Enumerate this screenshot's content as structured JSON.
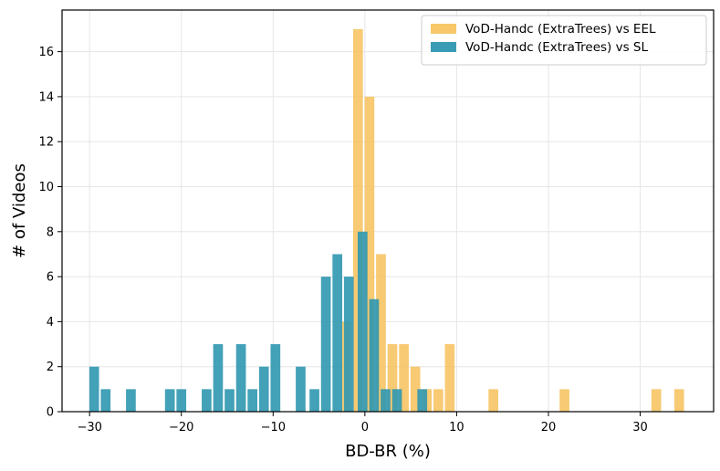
{
  "chart_data": {
    "type": "bar",
    "title": "",
    "xlabel": "BD-BR (%)",
    "ylabel": "# of Videos",
    "xlim": [
      -33,
      38
    ],
    "ylim": [
      0,
      17.85
    ],
    "xticks": [
      -30,
      -20,
      -10,
      0,
      10,
      20,
      30
    ],
    "yticks": [
      0,
      2,
      4,
      6,
      8,
      10,
      12,
      14,
      16
    ],
    "xtick_labels": [
      "−30",
      "−20",
      "−10",
      "0",
      "10",
      "20",
      "30"
    ],
    "ytick_labels": [
      "0",
      "2",
      "4",
      "6",
      "8",
      "10",
      "12",
      "14",
      "16"
    ],
    "bin_width": 1.25,
    "grid": true,
    "legend_position": "top-right",
    "series": [
      {
        "name": "VoD-Handc (ExtraTrees) vs EEL",
        "color": "#f6c15a",
        "bins": [
          {
            "x": -2.0,
            "count": 4
          },
          {
            "x": -0.75,
            "count": 17
          },
          {
            "x": 0.5,
            "count": 14
          },
          {
            "x": 1.75,
            "count": 7
          },
          {
            "x": 3.0,
            "count": 3
          },
          {
            "x": 4.25,
            "count": 3
          },
          {
            "x": 5.5,
            "count": 2
          },
          {
            "x": 6.75,
            "count": 1
          },
          {
            "x": 8.0,
            "count": 1
          },
          {
            "x": 9.25,
            "count": 3
          },
          {
            "x": 14.0,
            "count": 1
          },
          {
            "x": 21.75,
            "count": 1
          },
          {
            "x": 31.75,
            "count": 1
          },
          {
            "x": 34.25,
            "count": 1
          }
        ]
      },
      {
        "name": "VoD-Handc (ExtraTrees) vs SL",
        "color": "#2f97b0",
        "bins": [
          {
            "x": -29.5,
            "count": 2
          },
          {
            "x": -28.25,
            "count": 1
          },
          {
            "x": -25.5,
            "count": 1
          },
          {
            "x": -21.25,
            "count": 1
          },
          {
            "x": -20.0,
            "count": 1
          },
          {
            "x": -17.25,
            "count": 1
          },
          {
            "x": -16.0,
            "count": 3
          },
          {
            "x": -14.75,
            "count": 1
          },
          {
            "x": -13.5,
            "count": 3
          },
          {
            "x": -12.25,
            "count": 1
          },
          {
            "x": -11.0,
            "count": 2
          },
          {
            "x": -9.75,
            "count": 3
          },
          {
            "x": -7.0,
            "count": 2
          },
          {
            "x": -5.5,
            "count": 1
          },
          {
            "x": -4.25,
            "count": 6
          },
          {
            "x": -3.0,
            "count": 7
          },
          {
            "x": -1.75,
            "count": 6
          },
          {
            "x": -0.25,
            "count": 8
          },
          {
            "x": 1.0,
            "count": 5
          },
          {
            "x": 2.25,
            "count": 1
          },
          {
            "x": 3.5,
            "count": 1
          },
          {
            "x": 6.25,
            "count": 1
          }
        ]
      }
    ]
  }
}
